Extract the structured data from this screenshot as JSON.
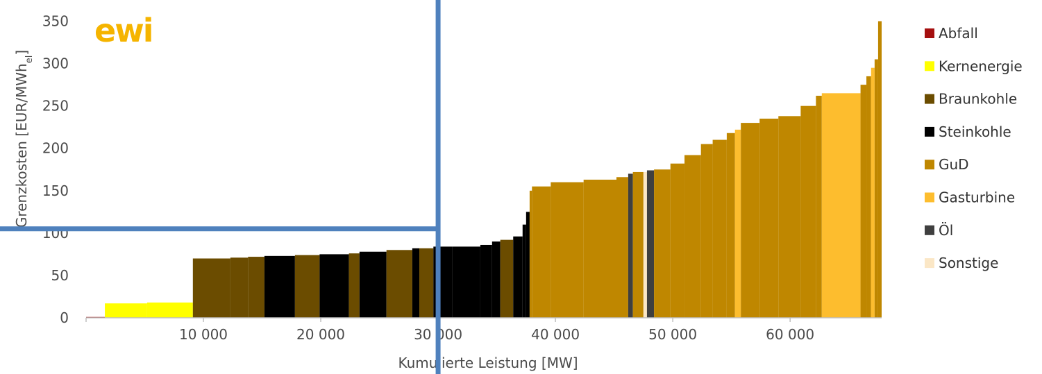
{
  "logo": {
    "text": "ewi",
    "color": "#f5b400",
    "accent": "#8a8a8a"
  },
  "chart_data": {
    "type": "bar",
    "xlabel": "Kumulierte Leistung [MW]",
    "ylabel": "Grenzkosten [EUR/MWh",
    "ylabel_sub": "el",
    "ylabel_end": "]",
    "xlim": [
      0,
      67800
    ],
    "ylim": [
      0,
      375
    ],
    "x_ticks": [
      10000,
      20000,
      30000,
      40000,
      50000,
      60000
    ],
    "x_tick_labels": [
      "10 000",
      "20 000",
      "30 000",
      "40 000",
      "50 000",
      "60 000"
    ],
    "y_ticks": [
      0,
      50,
      100,
      150,
      200,
      250,
      300,
      350
    ],
    "y_tick_labels": [
      "0",
      "50",
      "100",
      "150",
      "200",
      "250",
      "300",
      "350"
    ],
    "legend_position": "right",
    "legend": [
      {
        "name": "Abfall",
        "color": "#a50f0f"
      },
      {
        "name": "Kernenergie",
        "color": "#ffff00"
      },
      {
        "name": "Braunkohle",
        "color": "#6b4c00"
      },
      {
        "name": "Steinkohle",
        "color": "#000000"
      },
      {
        "name": "GuD",
        "color": "#bf8700"
      },
      {
        "name": "Gasturbine",
        "color": "#fdbd2e"
      },
      {
        "name": "Öl",
        "color": "#3f3f3f"
      },
      {
        "name": "Sonstige",
        "color": "#fbe7c6"
      }
    ],
    "segments": [
      {
        "x0": 0,
        "x1": 1600,
        "value": 1,
        "type": "Abfall"
      },
      {
        "x0": 1600,
        "x1": 5200,
        "value": 17,
        "type": "Kernenergie"
      },
      {
        "x0": 5200,
        "x1": 9100,
        "value": 18,
        "type": "Kernenergie"
      },
      {
        "x0": 9100,
        "x1": 12300,
        "value": 70,
        "type": "Braunkohle"
      },
      {
        "x0": 12300,
        "x1": 13800,
        "value": 71,
        "type": "Braunkohle"
      },
      {
        "x0": 13800,
        "x1": 15200,
        "value": 72,
        "type": "Braunkohle"
      },
      {
        "x0": 15200,
        "x1": 17800,
        "value": 73,
        "type": "Steinkohle"
      },
      {
        "x0": 17800,
        "x1": 19900,
        "value": 74,
        "type": "Braunkohle"
      },
      {
        "x0": 19900,
        "x1": 22400,
        "value": 75,
        "type": "Steinkohle"
      },
      {
        "x0": 22400,
        "x1": 23300,
        "value": 76,
        "type": "Braunkohle"
      },
      {
        "x0": 23300,
        "x1": 25600,
        "value": 78,
        "type": "Steinkohle"
      },
      {
        "x0": 25600,
        "x1": 27800,
        "value": 80,
        "type": "Braunkohle"
      },
      {
        "x0": 27800,
        "x1": 28400,
        "value": 82,
        "type": "Steinkohle"
      },
      {
        "x0": 28400,
        "x1": 29600,
        "value": 82,
        "type": "Braunkohle"
      },
      {
        "x0": 29600,
        "x1": 31200,
        "value": 84,
        "type": "Steinkohle"
      },
      {
        "x0": 31200,
        "x1": 33600,
        "value": 84,
        "type": "Steinkohle"
      },
      {
        "x0": 33600,
        "x1": 34600,
        "value": 86,
        "type": "Steinkohle"
      },
      {
        "x0": 34600,
        "x1": 35300,
        "value": 90,
        "type": "Steinkohle"
      },
      {
        "x0": 35300,
        "x1": 36400,
        "value": 92,
        "type": "Braunkohle"
      },
      {
        "x0": 36400,
        "x1": 37200,
        "value": 96,
        "type": "Steinkohle"
      },
      {
        "x0": 37200,
        "x1": 37500,
        "value": 110,
        "type": "Steinkohle"
      },
      {
        "x0": 37500,
        "x1": 37800,
        "value": 125,
        "type": "Steinkohle"
      },
      {
        "x0": 37800,
        "x1": 38000,
        "value": 150,
        "type": "GuD"
      },
      {
        "x0": 38000,
        "x1": 39600,
        "value": 155,
        "type": "GuD"
      },
      {
        "x0": 39600,
        "x1": 42400,
        "value": 160,
        "type": "GuD"
      },
      {
        "x0": 42400,
        "x1": 45200,
        "value": 163,
        "type": "GuD"
      },
      {
        "x0": 45200,
        "x1": 46200,
        "value": 166,
        "type": "GuD"
      },
      {
        "x0": 46200,
        "x1": 46600,
        "value": 170,
        "type": "Öl"
      },
      {
        "x0": 46600,
        "x1": 47500,
        "value": 172,
        "type": "GuD"
      },
      {
        "x0": 47500,
        "x1": 47800,
        "value": 172,
        "type": "Sonstige"
      },
      {
        "x0": 47800,
        "x1": 48400,
        "value": 174,
        "type": "Öl"
      },
      {
        "x0": 48400,
        "x1": 49800,
        "value": 175,
        "type": "GuD"
      },
      {
        "x0": 49800,
        "x1": 51000,
        "value": 182,
        "type": "GuD"
      },
      {
        "x0": 51000,
        "x1": 52400,
        "value": 192,
        "type": "GuD"
      },
      {
        "x0": 52400,
        "x1": 53400,
        "value": 205,
        "type": "GuD"
      },
      {
        "x0": 53400,
        "x1": 54600,
        "value": 210,
        "type": "GuD"
      },
      {
        "x0": 54600,
        "x1": 55300,
        "value": 218,
        "type": "GuD"
      },
      {
        "x0": 55300,
        "x1": 55800,
        "value": 222,
        "type": "Gasturbine"
      },
      {
        "x0": 55800,
        "x1": 57400,
        "value": 230,
        "type": "GuD"
      },
      {
        "x0": 57400,
        "x1": 59000,
        "value": 235,
        "type": "GuD"
      },
      {
        "x0": 59000,
        "x1": 60900,
        "value": 238,
        "type": "GuD"
      },
      {
        "x0": 60900,
        "x1": 62200,
        "value": 250,
        "type": "GuD"
      },
      {
        "x0": 62200,
        "x1": 62700,
        "value": 262,
        "type": "GuD"
      },
      {
        "x0": 62700,
        "x1": 66000,
        "value": 265,
        "type": "Gasturbine"
      },
      {
        "x0": 66000,
        "x1": 66500,
        "value": 275,
        "type": "GuD"
      },
      {
        "x0": 66500,
        "x1": 66900,
        "value": 285,
        "type": "GuD"
      },
      {
        "x0": 66900,
        "x1": 67200,
        "value": 295,
        "type": "Gasturbine"
      },
      {
        "x0": 67200,
        "x1": 67500,
        "value": 305,
        "type": "GuD"
      },
      {
        "x0": 67500,
        "x1": 67800,
        "value": 350,
        "type": "GuD"
      }
    ],
    "reference_lines": {
      "x": 30000,
      "y": 105,
      "color": "#4f81bd"
    }
  }
}
